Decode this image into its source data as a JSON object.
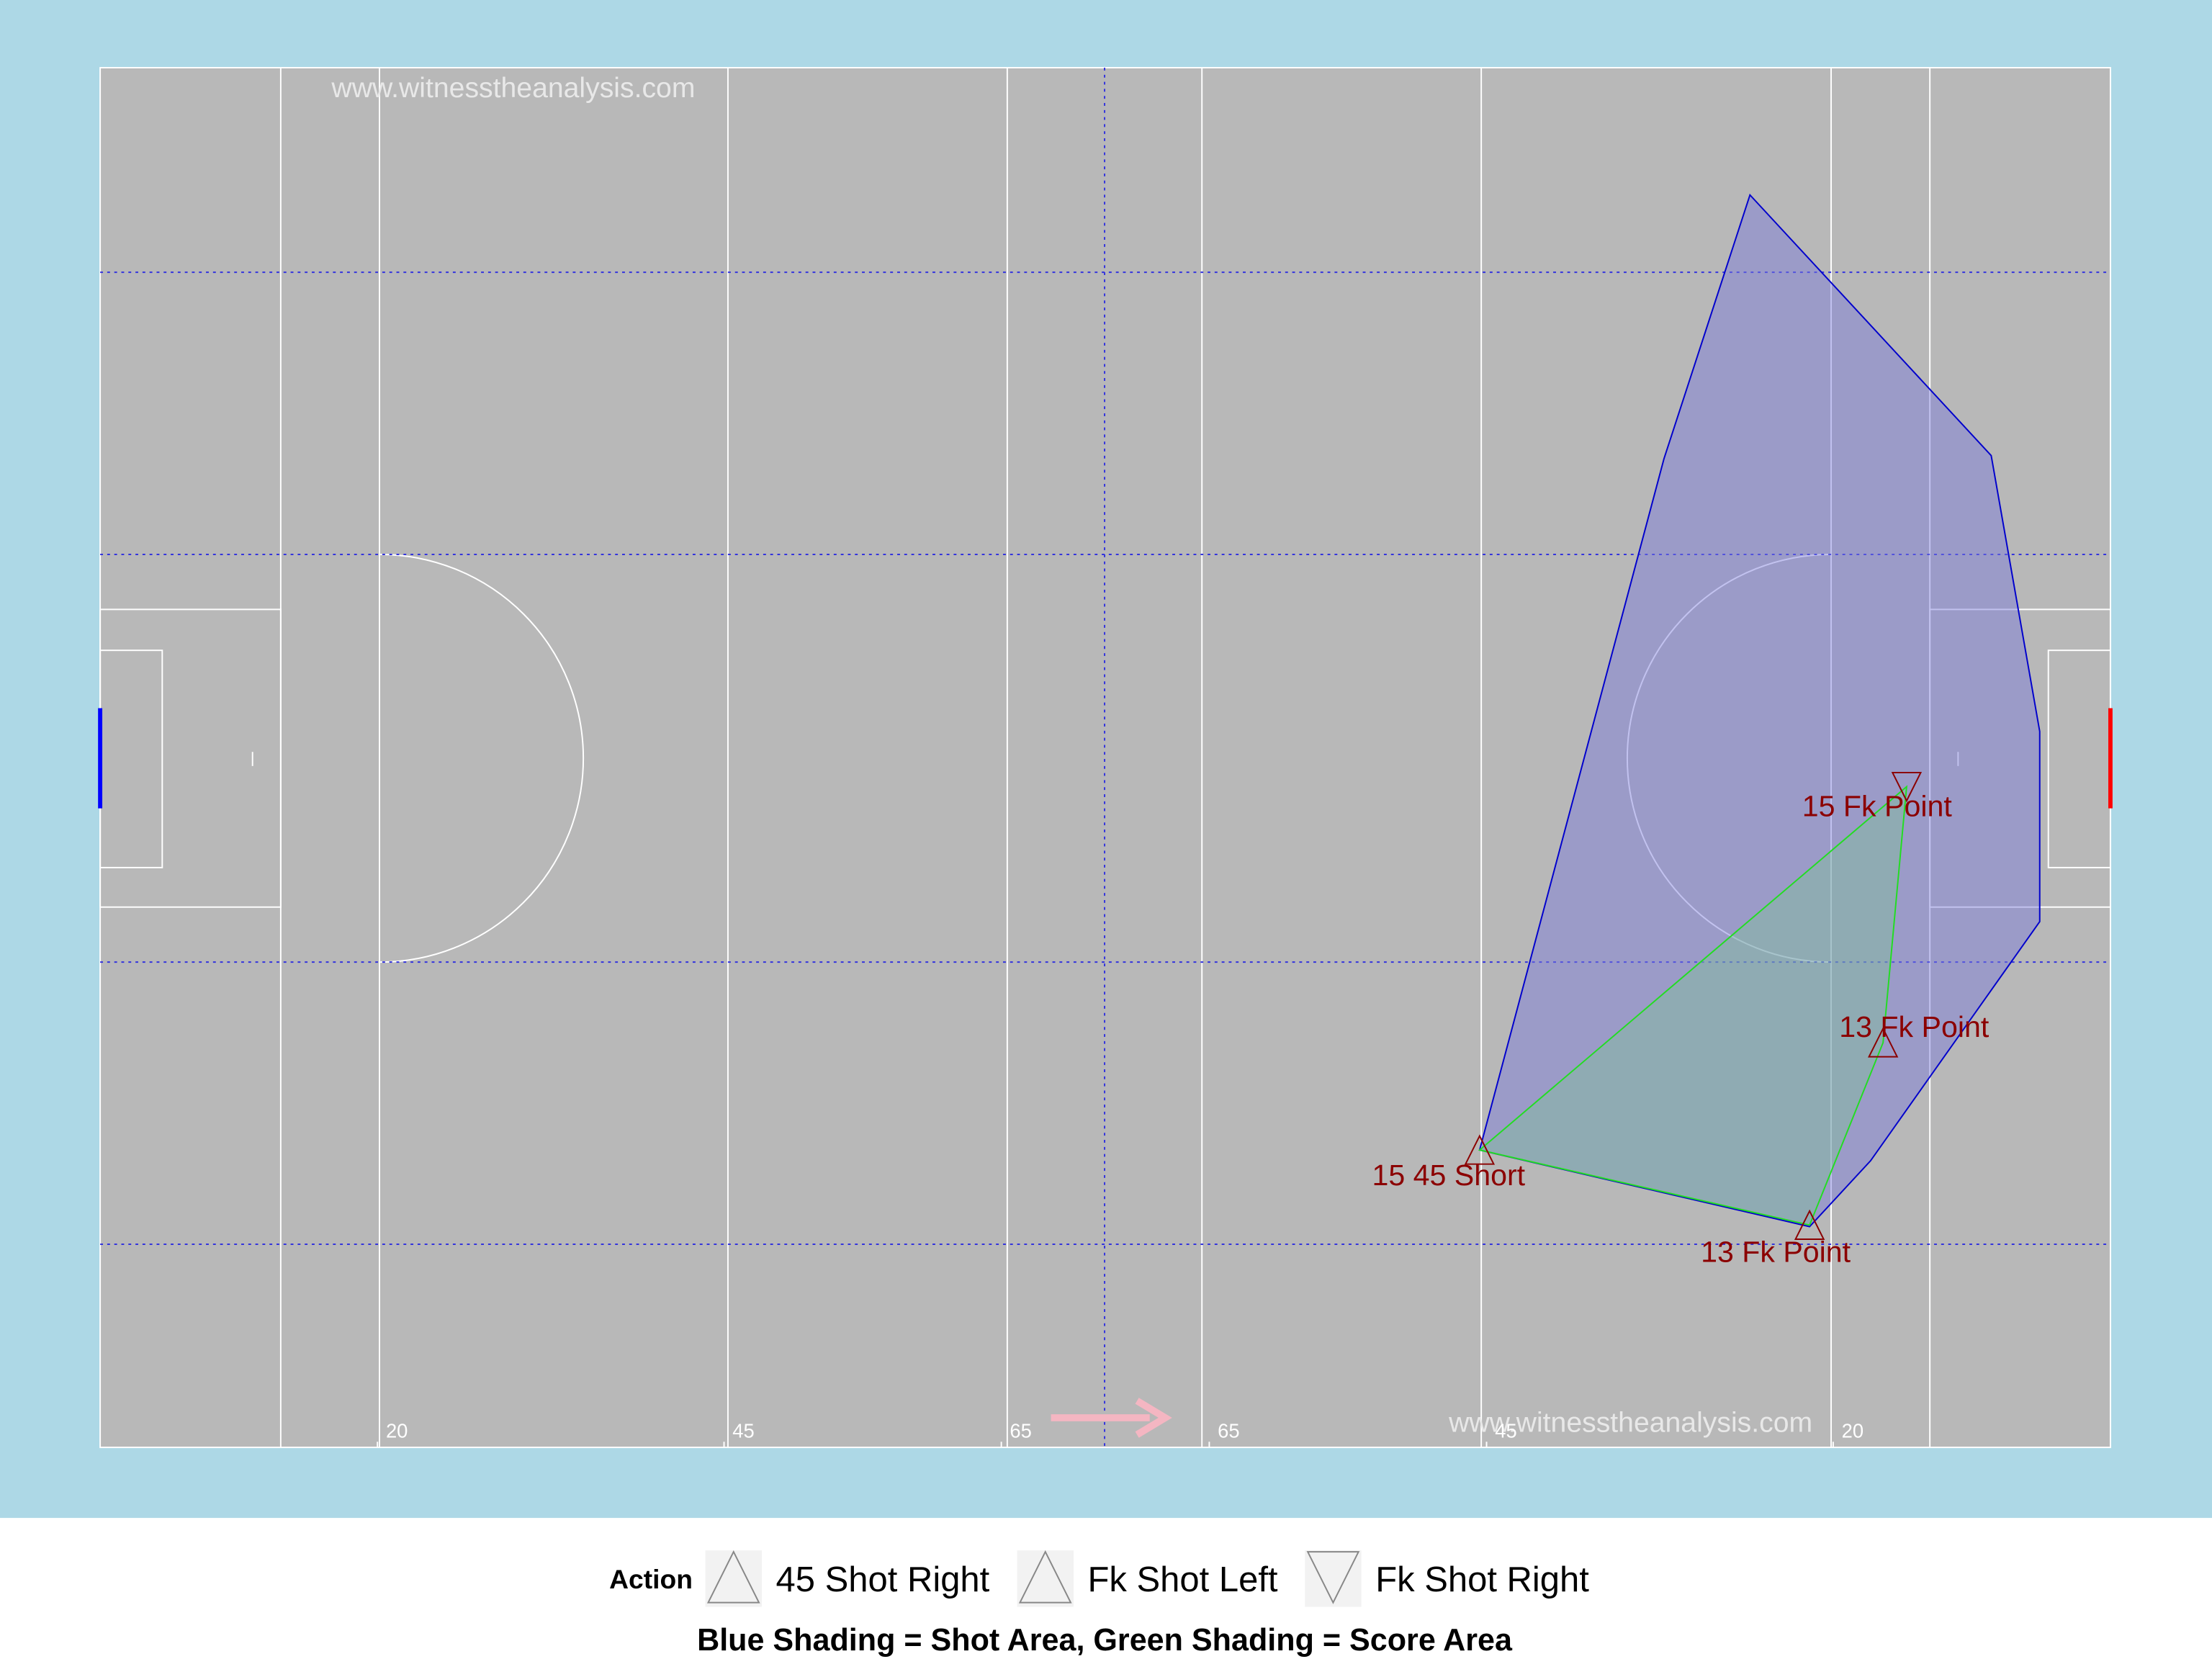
{
  "chart_data": {
    "type": "scatter",
    "watermarks": [
      "www.witnesstheanalysis.com",
      "www.witnesstheanalysis.com"
    ],
    "xlim": [
      0,
      145
    ],
    "ylim": [
      0,
      90
    ],
    "xticks": [
      20,
      45,
      {
        "value": 65,
        "label": "65"
      },
      {
        "value": 80,
        "label": "65"
      },
      {
        "value": 100,
        "label": "45"
      },
      {
        "value": 125,
        "label": "20"
      }
    ],
    "legend_title": "Action",
    "series": [
      {
        "name": "45 Shot Right",
        "marker": "triangle-up",
        "color": "#8b0000",
        "x": [
          99.5
        ],
        "values": [
          19.4
        ],
        "point_labels": [
          "15 45 Short"
        ]
      },
      {
        "name": "Fk Shot Left",
        "marker": "triangle-up",
        "color": "#8b0000",
        "x": [
          123.3,
          128.6
        ],
        "values": [
          14.5,
          26.4
        ],
        "point_labels": [
          "13 Fk Point",
          "13 Fk Point"
        ]
      },
      {
        "name": "Fk Shot Right",
        "marker": "triangle-down",
        "color": "#8b0000",
        "x": [
          130.3
        ],
        "values": [
          43.1
        ],
        "point_labels": [
          "15 Fk Point"
        ]
      }
    ],
    "shot_area": {
      "color": "#0000cc",
      "x": [
        119.0,
        136.4,
        139.9,
        139.9,
        127.7,
        123.3,
        99.5,
        112.8
      ],
      "y": [
        81.7,
        64.7,
        46.7,
        34.3,
        18.7,
        14.4,
        19.4,
        64.5
      ]
    },
    "caption": "Blue Shading = Shot Area, Green Shading = Score Area"
  }
}
